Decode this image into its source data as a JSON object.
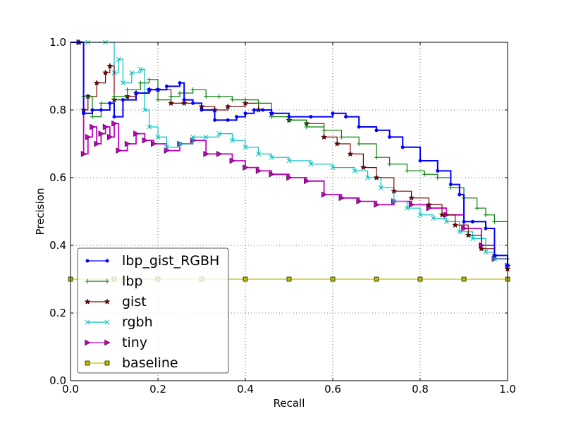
{
  "chart_data": {
    "type": "line",
    "title": "",
    "xlabel": "Recall",
    "ylabel": "Precision",
    "xlim": [
      0.0,
      1.0
    ],
    "ylim": [
      0.0,
      1.0
    ],
    "xticks": [
      "0.0",
      "0.2",
      "0.4",
      "0.6",
      "0.8",
      "1.0"
    ],
    "yticks": [
      "0.0",
      "0.2",
      "0.4",
      "0.6",
      "0.8",
      "1.0"
    ],
    "grid": true,
    "legend_position": "lower-left",
    "series": [
      {
        "name": "lbp_gist_RGBH",
        "color": "#0000ff",
        "marker": "dot",
        "x": [
          0.0,
          0.02,
          0.03,
          0.05,
          0.07,
          0.09,
          0.1,
          0.12,
          0.15,
          0.18,
          0.2,
          0.22,
          0.25,
          0.26,
          0.28,
          0.3,
          0.33,
          0.36,
          0.38,
          0.4,
          0.42,
          0.44,
          0.46,
          0.5,
          0.55,
          0.6,
          0.63,
          0.66,
          0.7,
          0.73,
          0.76,
          0.8,
          0.84,
          0.87,
          0.89,
          0.9,
          0.92,
          0.95,
          0.97,
          1.0
        ],
        "y": [
          1.0,
          1.0,
          0.79,
          0.8,
          0.8,
          0.82,
          0.78,
          0.83,
          0.85,
          0.86,
          0.86,
          0.87,
          0.88,
          0.83,
          0.82,
          0.8,
          0.77,
          0.77,
          0.78,
          0.79,
          0.8,
          0.8,
          0.79,
          0.78,
          0.78,
          0.79,
          0.78,
          0.75,
          0.74,
          0.72,
          0.69,
          0.65,
          0.62,
          0.58,
          0.55,
          0.47,
          0.47,
          0.45,
          0.37,
          0.34
        ]
      },
      {
        "name": "lbp",
        "color": "#007f00",
        "marker": "plus",
        "x": [
          0.0,
          0.02,
          0.03,
          0.05,
          0.07,
          0.1,
          0.13,
          0.16,
          0.18,
          0.2,
          0.23,
          0.25,
          0.28,
          0.31,
          0.34,
          0.37,
          0.4,
          0.43,
          0.46,
          0.5,
          0.54,
          0.58,
          0.62,
          0.66,
          0.7,
          0.73,
          0.77,
          0.81,
          0.84,
          0.87,
          0.9,
          0.93,
          0.95,
          0.97,
          1.0
        ],
        "y": [
          1.0,
          1.0,
          0.84,
          0.78,
          0.82,
          0.84,
          0.86,
          0.88,
          0.89,
          0.83,
          0.84,
          0.85,
          0.86,
          0.84,
          0.84,
          0.83,
          0.83,
          0.82,
          0.78,
          0.77,
          0.75,
          0.74,
          0.72,
          0.7,
          0.66,
          0.64,
          0.62,
          0.61,
          0.6,
          0.57,
          0.54,
          0.51,
          0.49,
          0.47,
          0.36
        ]
      },
      {
        "name": "gist",
        "color": "#7f0000",
        "marker": "star",
        "x": [
          0.0,
          0.02,
          0.03,
          0.04,
          0.06,
          0.08,
          0.09,
          0.1,
          0.13,
          0.15,
          0.18,
          0.2,
          0.23,
          0.26,
          0.3,
          0.33,
          0.36,
          0.4,
          0.43,
          0.46,
          0.5,
          0.54,
          0.58,
          0.61,
          0.64,
          0.67,
          0.7,
          0.74,
          0.78,
          0.82,
          0.85,
          0.88,
          0.91,
          0.94,
          0.97,
          1.0
        ],
        "y": [
          1.0,
          1.0,
          0.8,
          0.84,
          0.88,
          0.91,
          0.93,
          0.83,
          0.84,
          0.85,
          0.86,
          0.86,
          0.82,
          0.82,
          0.81,
          0.8,
          0.81,
          0.82,
          0.8,
          0.79,
          0.77,
          0.76,
          0.72,
          0.7,
          0.67,
          0.63,
          0.6,
          0.56,
          0.54,
          0.52,
          0.49,
          0.46,
          0.43,
          0.39,
          0.37,
          0.33
        ]
      },
      {
        "name": "rgbh",
        "color": "#00bfbf",
        "marker": "x",
        "x": [
          0.0,
          0.04,
          0.08,
          0.1,
          0.11,
          0.12,
          0.14,
          0.16,
          0.17,
          0.18,
          0.2,
          0.22,
          0.25,
          0.28,
          0.31,
          0.34,
          0.37,
          0.4,
          0.43,
          0.46,
          0.5,
          0.55,
          0.6,
          0.65,
          0.68,
          0.71,
          0.74,
          0.77,
          0.8,
          0.83,
          0.86,
          0.89,
          0.92,
          0.95,
          0.97,
          1.0
        ],
        "y": [
          1.0,
          1.0,
          1.0,
          0.91,
          0.95,
          0.88,
          0.91,
          0.92,
          0.8,
          0.75,
          0.72,
          0.69,
          0.7,
          0.72,
          0.72,
          0.73,
          0.71,
          0.69,
          0.67,
          0.66,
          0.65,
          0.64,
          0.63,
          0.62,
          0.6,
          0.57,
          0.53,
          0.51,
          0.49,
          0.48,
          0.47,
          0.44,
          0.42,
          0.38,
          0.36,
          0.34
        ]
      },
      {
        "name": "tiny",
        "color": "#bf00bf",
        "marker": "triangle-right",
        "x": [
          0.0,
          0.02,
          0.03,
          0.04,
          0.05,
          0.06,
          0.07,
          0.08,
          0.09,
          0.1,
          0.11,
          0.13,
          0.15,
          0.17,
          0.19,
          0.22,
          0.25,
          0.28,
          0.31,
          0.34,
          0.37,
          0.4,
          0.43,
          0.46,
          0.5,
          0.54,
          0.58,
          0.62,
          0.66,
          0.7,
          0.74,
          0.78,
          0.82,
          0.86,
          0.9,
          0.94,
          0.97,
          1.0
        ],
        "y": [
          1.0,
          1.0,
          0.67,
          0.72,
          0.75,
          0.7,
          0.73,
          0.75,
          0.72,
          0.76,
          0.68,
          0.7,
          0.73,
          0.71,
          0.7,
          0.68,
          0.7,
          0.71,
          0.67,
          0.67,
          0.65,
          0.63,
          0.62,
          0.61,
          0.6,
          0.59,
          0.55,
          0.54,
          0.53,
          0.52,
          0.53,
          0.52,
          0.51,
          0.49,
          0.45,
          0.4,
          0.36,
          0.34
        ]
      },
      {
        "name": "baseline",
        "color": "#bfbf00",
        "marker": "square",
        "x": [
          0.0,
          0.1,
          0.2,
          0.3,
          0.4,
          0.5,
          0.6,
          0.7,
          0.8,
          0.9,
          1.0
        ],
        "y": [
          0.3,
          0.3,
          0.3,
          0.3,
          0.3,
          0.3,
          0.3,
          0.3,
          0.3,
          0.3,
          0.3
        ]
      }
    ]
  }
}
